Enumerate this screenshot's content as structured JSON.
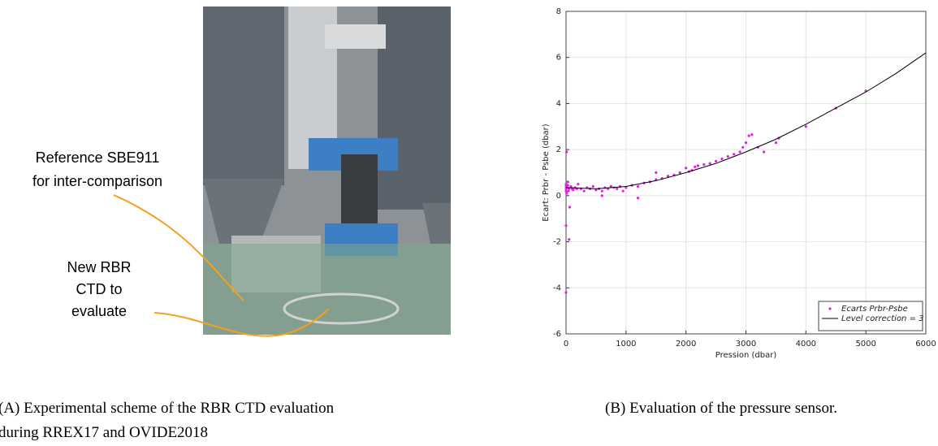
{
  "panel_a": {
    "annotation_reference": [
      "Reference SBE911",
      "for inter-comparison"
    ],
    "annotation_new": [
      "New RBR",
      "CTD to",
      "evaluate"
    ],
    "caption": [
      "(A)    Experimental scheme of the RBR CTD evaluation",
      "during RREX17 and OVIDE2018"
    ]
  },
  "panel_b": {
    "caption": "(B)    Evaluation of the pressure sensor."
  },
  "chart_data": {
    "type": "scatter",
    "xlabel": "Pression (dbar)",
    "ylabel": "Ecart: Prbr - Psbe (dbar)",
    "xlim": [
      0,
      6000
    ],
    "xticks": [
      0,
      1000,
      2000,
      3000,
      4000,
      5000,
      6000
    ],
    "ylim": [
      -6,
      8
    ],
    "yticks": [
      -6,
      -4,
      -2,
      0,
      2,
      4,
      6,
      8
    ],
    "grid": true,
    "legend": "lower right",
    "series": [
      {
        "name": "Ecarts Prbr-Psbe",
        "color": "#e020e0",
        "mode": "markers",
        "x": [
          0,
          0,
          0,
          0,
          0,
          0,
          10,
          20,
          30,
          40,
          50,
          60,
          80,
          100,
          120,
          150,
          180,
          200,
          250,
          300,
          350,
          400,
          450,
          500,
          550,
          600,
          650,
          700,
          750,
          800,
          850,
          900,
          950,
          1000,
          1100,
          1200,
          1300,
          1400,
          1500,
          1600,
          1700,
          1800,
          1900,
          2000,
          2050,
          2100,
          2150,
          2200,
          2300,
          2400,
          2500,
          2600,
          2700,
          2800,
          2900,
          2950,
          3000,
          3050,
          3100,
          3200,
          3300,
          3500,
          3550,
          4000,
          4500,
          5000,
          50,
          10,
          30,
          600,
          1200,
          1500
        ],
        "values": [
          -4.2,
          -1.3,
          0.5,
          0.3,
          0.2,
          0.4,
          1.9,
          0.35,
          0.45,
          0.2,
          0.3,
          -0.5,
          0.4,
          0.3,
          0.25,
          0.35,
          0.3,
          0.5,
          0.3,
          0.2,
          0.35,
          0.3,
          0.4,
          0.25,
          0.3,
          0.2,
          0.35,
          0.3,
          0.4,
          0.35,
          0.3,
          0.4,
          0.2,
          0.35,
          0.45,
          0.4,
          0.55,
          0.6,
          0.7,
          0.75,
          0.85,
          0.9,
          1.0,
          1.2,
          1.05,
          1.1,
          1.25,
          1.3,
          1.35,
          1.4,
          1.5,
          1.6,
          1.7,
          1.8,
          1.9,
          2.1,
          2.3,
          2.6,
          2.65,
          2.1,
          1.9,
          2.3,
          2.5,
          3.0,
          3.8,
          4.55,
          -1.9,
          0.1,
          0.6,
          0.0,
          -0.1,
          1.0
        ]
      },
      {
        "name": "Level correction = 3",
        "color": "#000000",
        "mode": "line",
        "x": [
          0,
          500,
          1000,
          1500,
          2000,
          2500,
          3000,
          3500,
          4000,
          4500,
          5000,
          5500,
          6000
        ],
        "values": [
          0.35,
          0.3,
          0.4,
          0.65,
          1.0,
          1.4,
          1.9,
          2.45,
          3.1,
          3.8,
          4.5,
          5.3,
          6.2
        ]
      }
    ]
  }
}
